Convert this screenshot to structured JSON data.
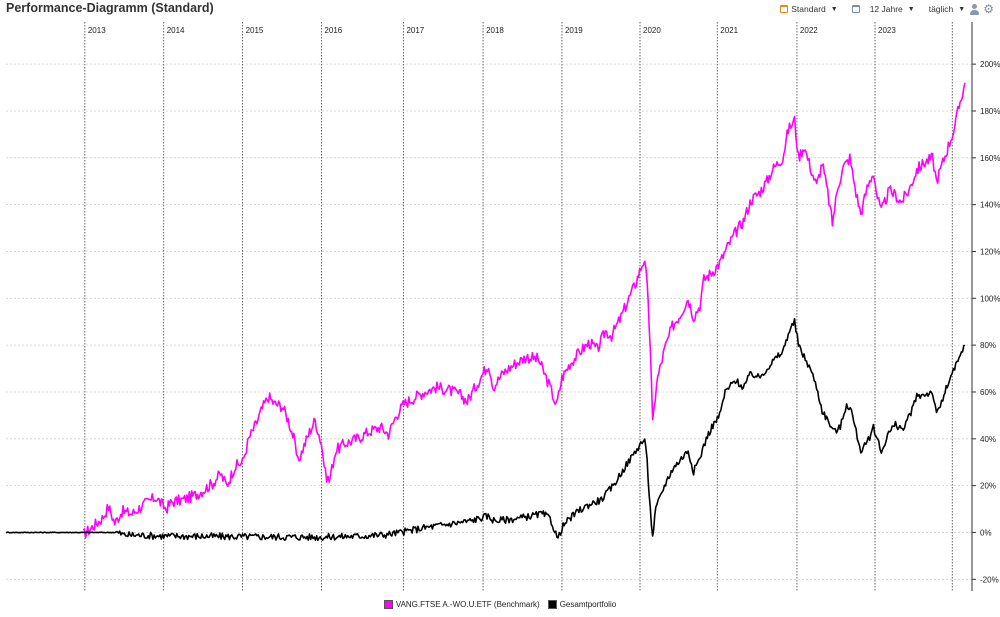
{
  "header": {
    "title": "Performance-Diagramm (Standard)"
  },
  "toolbar": {
    "view_label": "Standard",
    "period_label": "12 Jahre",
    "interval_label": "täglich",
    "icons": [
      "calendar-icon",
      "calendar-range-icon",
      "dropdown-caret-icon",
      "user-icon",
      "gear-icon"
    ]
  },
  "chart_data": {
    "type": "line",
    "x_unit": "year",
    "xlim": [
      2012.0,
      2024.25
    ],
    "ylim": [
      -25,
      218
    ],
    "y_ticks": [
      -20,
      0,
      20,
      40,
      60,
      80,
      100,
      120,
      140,
      160,
      180,
      200
    ],
    "y_tick_labels": [
      "-20%",
      "0%",
      "20%",
      "40%",
      "60%",
      "80%",
      "100%",
      "120%",
      "140%",
      "160%",
      "180%",
      "200%"
    ],
    "year_markers": [
      2013,
      2014,
      2015,
      2016,
      2017,
      2018,
      2019,
      2020,
      2021,
      2022,
      2023
    ],
    "year_labels": [
      "2013",
      "2014",
      "2015",
      "2016",
      "2017",
      "2018",
      "2019",
      "2020",
      "2021",
      "2022",
      "2023"
    ],
    "year_line_positions": [
      2013.0,
      2014.0,
      2015.0,
      2016.0,
      2017.04,
      2018.05,
      2019.05,
      2020.04,
      2021.02,
      2022.03,
      2023.02,
      2024.0
    ],
    "grid": {
      "horizontal": "dotted",
      "vertical": "dotted"
    },
    "legend_position": "bottom-center",
    "series": [
      {
        "name": "VANG.FTSE A.-WO.U.ETF  (Benchmark)",
        "color": "#ff00ff",
        "points": [
          [
            2012.98,
            -1
          ],
          [
            2013.05,
            1
          ],
          [
            2013.12,
            3
          ],
          [
            2013.22,
            6
          ],
          [
            2013.3,
            11
          ],
          [
            2013.38,
            4
          ],
          [
            2013.47,
            9
          ],
          [
            2013.6,
            8
          ],
          [
            2013.75,
            12
          ],
          [
            2013.9,
            15
          ],
          [
            2014.03,
            10
          ],
          [
            2014.1,
            13
          ],
          [
            2014.25,
            14
          ],
          [
            2014.4,
            16
          ],
          [
            2014.5,
            18
          ],
          [
            2014.62,
            21
          ],
          [
            2014.72,
            25
          ],
          [
            2014.8,
            20
          ],
          [
            2014.9,
            28
          ],
          [
            2015.0,
            30
          ],
          [
            2015.08,
            40
          ],
          [
            2015.18,
            47
          ],
          [
            2015.25,
            53
          ],
          [
            2015.33,
            58
          ],
          [
            2015.4,
            55
          ],
          [
            2015.5,
            54
          ],
          [
            2015.58,
            48
          ],
          [
            2015.65,
            40
          ],
          [
            2015.7,
            30
          ],
          [
            2015.78,
            37
          ],
          [
            2015.85,
            43
          ],
          [
            2015.92,
            48
          ],
          [
            2016.0,
            38
          ],
          [
            2016.05,
            25
          ],
          [
            2016.1,
            22
          ],
          [
            2016.18,
            35
          ],
          [
            2016.3,
            38
          ],
          [
            2016.45,
            40
          ],
          [
            2016.6,
            43
          ],
          [
            2016.75,
            45
          ],
          [
            2016.85,
            42
          ],
          [
            2016.95,
            50
          ],
          [
            2017.05,
            55
          ],
          [
            2017.15,
            57
          ],
          [
            2017.3,
            60
          ],
          [
            2017.45,
            62
          ],
          [
            2017.6,
            61
          ],
          [
            2017.75,
            59
          ],
          [
            2017.85,
            56
          ],
          [
            2017.95,
            62
          ],
          [
            2018.05,
            68
          ],
          [
            2018.12,
            72
          ],
          [
            2018.18,
            62
          ],
          [
            2018.3,
            68
          ],
          [
            2018.45,
            72
          ],
          [
            2018.6,
            75
          ],
          [
            2018.75,
            74
          ],
          [
            2018.85,
            66
          ],
          [
            2018.9,
            62
          ],
          [
            2018.98,
            54
          ],
          [
            2019.05,
            66
          ],
          [
            2019.15,
            72
          ],
          [
            2019.3,
            78
          ],
          [
            2019.4,
            81
          ],
          [
            2019.5,
            78
          ],
          [
            2019.6,
            86
          ],
          [
            2019.68,
            84
          ],
          [
            2019.8,
            92
          ],
          [
            2019.9,
            100
          ],
          [
            2019.98,
            106
          ],
          [
            2020.05,
            113
          ],
          [
            2020.1,
            117
          ],
          [
            2020.13,
            105
          ],
          [
            2020.17,
            80
          ],
          [
            2020.2,
            46
          ],
          [
            2020.25,
            64
          ],
          [
            2020.35,
            78
          ],
          [
            2020.45,
            88
          ],
          [
            2020.55,
            93
          ],
          [
            2020.65,
            100
          ],
          [
            2020.72,
            92
          ],
          [
            2020.8,
            97
          ],
          [
            2020.85,
            108
          ],
          [
            2020.95,
            111
          ],
          [
            2021.05,
            115
          ],
          [
            2021.15,
            122
          ],
          [
            2021.25,
            128
          ],
          [
            2021.35,
            133
          ],
          [
            2021.45,
            142
          ],
          [
            2021.55,
            145
          ],
          [
            2021.65,
            150
          ],
          [
            2021.72,
            155
          ],
          [
            2021.85,
            160
          ],
          [
            2021.92,
            172
          ],
          [
            2022.0,
            176
          ],
          [
            2022.05,
            160
          ],
          [
            2022.12,
            165
          ],
          [
            2022.2,
            156
          ],
          [
            2022.28,
            148
          ],
          [
            2022.35,
            158
          ],
          [
            2022.42,
            145
          ],
          [
            2022.48,
            132
          ],
          [
            2022.55,
            148
          ],
          [
            2022.62,
            156
          ],
          [
            2022.7,
            160
          ],
          [
            2022.78,
            145
          ],
          [
            2022.84,
            136
          ],
          [
            2022.92,
            147
          ],
          [
            2023.0,
            154
          ],
          [
            2023.05,
            143
          ],
          [
            2023.1,
            137
          ],
          [
            2023.2,
            146
          ],
          [
            2023.28,
            144
          ],
          [
            2023.35,
            141
          ],
          [
            2023.45,
            146
          ],
          [
            2023.55,
            155
          ],
          [
            2023.65,
            158
          ],
          [
            2023.75,
            160
          ],
          [
            2023.8,
            150
          ],
          [
            2023.88,
            158
          ],
          [
            2023.95,
            165
          ],
          [
            2024.03,
            173
          ],
          [
            2024.1,
            184
          ],
          [
            2024.16,
            192
          ]
        ]
      },
      {
        "name": "Gesamtportfolio",
        "color": "#000000",
        "points": [
          [
            2012.0,
            0
          ],
          [
            2012.5,
            0
          ],
          [
            2013.0,
            0
          ],
          [
            2013.4,
            0
          ],
          [
            2013.5,
            -1
          ],
          [
            2014.0,
            -1.5
          ],
          [
            2015.0,
            -1.8
          ],
          [
            2016.0,
            -2
          ],
          [
            2016.5,
            -1.5
          ],
          [
            2016.8,
            -1
          ],
          [
            2017.0,
            0
          ],
          [
            2017.15,
            1
          ],
          [
            2017.3,
            2
          ],
          [
            2017.5,
            3
          ],
          [
            2017.7,
            4
          ],
          [
            2017.9,
            5
          ],
          [
            2018.0,
            6
          ],
          [
            2018.1,
            7
          ],
          [
            2018.2,
            5
          ],
          [
            2018.35,
            5.5
          ],
          [
            2018.5,
            6
          ],
          [
            2018.65,
            7
          ],
          [
            2018.8,
            8
          ],
          [
            2018.9,
            6
          ],
          [
            2019.0,
            -3
          ],
          [
            2019.05,
            2
          ],
          [
            2019.12,
            5
          ],
          [
            2019.25,
            9
          ],
          [
            2019.4,
            12
          ],
          [
            2019.55,
            14
          ],
          [
            2019.7,
            20
          ],
          [
            2019.85,
            28
          ],
          [
            2019.97,
            34
          ],
          [
            2020.05,
            38
          ],
          [
            2020.1,
            40
          ],
          [
            2020.13,
            30
          ],
          [
            2020.17,
            10
          ],
          [
            2020.2,
            -2
          ],
          [
            2020.24,
            10
          ],
          [
            2020.35,
            20
          ],
          [
            2020.45,
            27
          ],
          [
            2020.55,
            31
          ],
          [
            2020.65,
            35
          ],
          [
            2020.72,
            26
          ],
          [
            2020.8,
            32
          ],
          [
            2020.88,
            40
          ],
          [
            2020.95,
            45
          ],
          [
            2021.05,
            50
          ],
          [
            2021.12,
            60
          ],
          [
            2021.25,
            65
          ],
          [
            2021.35,
            62
          ],
          [
            2021.45,
            68
          ],
          [
            2021.55,
            66
          ],
          [
            2021.65,
            70
          ],
          [
            2021.75,
            74
          ],
          [
            2021.85,
            77
          ],
          [
            2021.92,
            85
          ],
          [
            2022.0,
            90
          ],
          [
            2022.05,
            80
          ],
          [
            2022.12,
            75
          ],
          [
            2022.2,
            70
          ],
          [
            2022.28,
            62
          ],
          [
            2022.35,
            52
          ],
          [
            2022.42,
            48
          ],
          [
            2022.5,
            43
          ],
          [
            2022.58,
            45
          ],
          [
            2022.66,
            55
          ],
          [
            2022.72,
            52
          ],
          [
            2022.78,
            43
          ],
          [
            2022.84,
            35
          ],
          [
            2022.92,
            38
          ],
          [
            2023.0,
            45
          ],
          [
            2023.05,
            40
          ],
          [
            2023.1,
            34
          ],
          [
            2023.18,
            42
          ],
          [
            2023.28,
            46
          ],
          [
            2023.38,
            44
          ],
          [
            2023.46,
            50
          ],
          [
            2023.55,
            58
          ],
          [
            2023.65,
            59
          ],
          [
            2023.75,
            60
          ],
          [
            2023.8,
            50
          ],
          [
            2023.88,
            57
          ],
          [
            2023.95,
            64
          ],
          [
            2024.03,
            70
          ],
          [
            2024.1,
            75
          ],
          [
            2024.16,
            80
          ]
        ]
      }
    ]
  }
}
